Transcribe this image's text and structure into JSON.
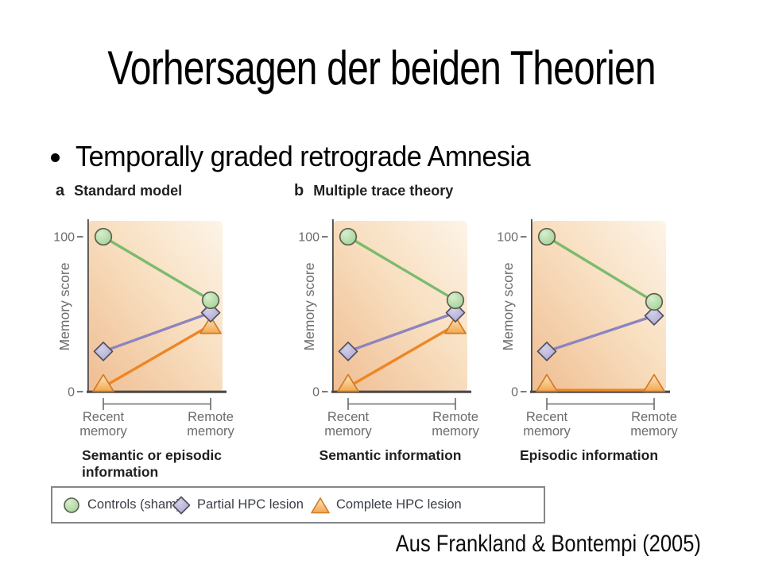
{
  "slide": {
    "title": "Vorhersagen der beiden Theorien",
    "bullet_text": "Temporally graded retrograde Amnesia",
    "citation": "Aus Frankland & Bontempi (2005)"
  },
  "figure": {
    "legend": {
      "items": [
        {
          "label": "Controls (sham)",
          "marker": "circle-icon"
        },
        {
          "label": "Partial HPC lesion",
          "marker": "diamond-icon"
        },
        {
          "label": "Complete HPC lesion",
          "marker": "triangle-icon"
        }
      ]
    },
    "colors": {
      "controls_line": "#7cbb6e",
      "partial_line": "#8d84bf",
      "complete_line": "#ee8625",
      "panel_bg_light": "#fdf4e8",
      "panel_bg_dark": "#efbd92",
      "axis": "#4a4a4c",
      "muted_text": "#6b6c6e",
      "dark_text": "#231f20"
    }
  },
  "chart_data": [
    {
      "type": "line",
      "panel_letter": "a",
      "panel_title": "Standard model",
      "caption": "Semantic or episodic\ninformation",
      "categories": [
        "Recent memory",
        "Remote memory"
      ],
      "xlabel": "",
      "ylabel": "Memory score",
      "ylim": [
        0,
        100
      ],
      "yticks": [
        100,
        0
      ],
      "series": [
        {
          "name": "Controls (sham)",
          "marker": "circle",
          "line_color": "#7cbb6e",
          "fill_color": "#a8d69b",
          "marker_stroke": "#5c6152",
          "values": [
            100,
            59
          ]
        },
        {
          "name": "Partial HPC lesion",
          "marker": "diamond",
          "line_color": "#8d84bf",
          "fill_color": "#b4afd7",
          "marker_stroke": "#4e4e5c",
          "values": [
            26,
            51
          ]
        },
        {
          "name": "Complete HPC lesion",
          "marker": "triangle",
          "line_color": "#ee8625",
          "fill_color": "#f8c98e",
          "marker_stroke": "#d07b28",
          "values": [
            3,
            43
          ]
        }
      ]
    },
    {
      "type": "line",
      "panel_letter": "b",
      "panel_title": "Multiple trace theory",
      "caption": "Semantic information",
      "categories": [
        "Recent memory",
        "Remote memory"
      ],
      "xlabel": "",
      "ylabel": "Memory score",
      "ylim": [
        0,
        100
      ],
      "yticks": [
        100,
        0
      ],
      "series": [
        {
          "name": "Controls (sham)",
          "marker": "circle",
          "line_color": "#7cbb6e",
          "fill_color": "#a8d69b",
          "marker_stroke": "#5c6152",
          "values": [
            100,
            59
          ]
        },
        {
          "name": "Partial HPC lesion",
          "marker": "diamond",
          "line_color": "#8d84bf",
          "fill_color": "#b4afd7",
          "marker_stroke": "#4e4e5c",
          "values": [
            26,
            51
          ]
        },
        {
          "name": "Complete HPC lesion",
          "marker": "triangle",
          "line_color": "#ee8625",
          "fill_color": "#f8c98e",
          "marker_stroke": "#d07b28",
          "values": [
            3,
            43
          ]
        }
      ]
    },
    {
      "type": "line",
      "panel_letter": "",
      "panel_title": "",
      "caption": "Episodic information",
      "categories": [
        "Recent memory",
        "Remote memory"
      ],
      "xlabel": "",
      "ylabel": "Memory score",
      "ylim": [
        0,
        100
      ],
      "yticks": [
        100,
        0
      ],
      "series": [
        {
          "name": "Controls (sham)",
          "marker": "circle",
          "line_color": "#7cbb6e",
          "fill_color": "#a8d69b",
          "marker_stroke": "#5c6152",
          "values": [
            100,
            58
          ]
        },
        {
          "name": "Partial HPC lesion",
          "marker": "diamond",
          "line_color": "#8d84bf",
          "fill_color": "#b4afd7",
          "marker_stroke": "#4e4e5c",
          "values": [
            26,
            49
          ]
        },
        {
          "name": "Complete HPC lesion",
          "marker": "triangle",
          "line_color": "#ee8625",
          "fill_color": "#f8c98e",
          "marker_stroke": "#d07b28",
          "values": [
            1,
            1
          ]
        }
      ]
    }
  ]
}
